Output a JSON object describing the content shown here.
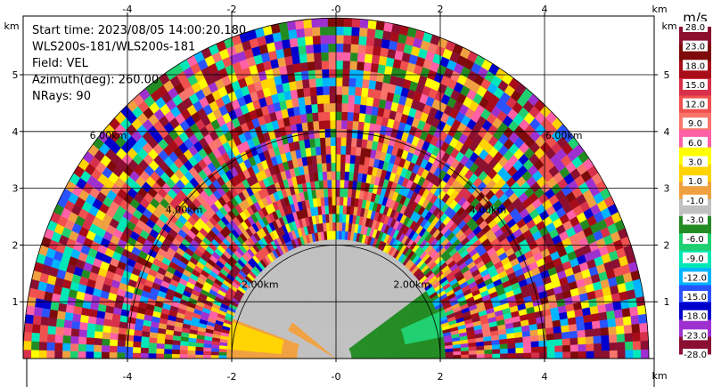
{
  "chart_data": {
    "type": "heatmap",
    "subtype": "radar-ppi-sector",
    "info_lines": [
      "Start time: 2023/08/05 14:00:20.180",
      "WLS200s-181/WLS200s-181",
      "Field: VEL",
      "Azimuth(deg): 260.00",
      "NRays: 90"
    ],
    "x_unit": "km",
    "y_unit": "km",
    "x_ticks": [
      "-4",
      "-2",
      "-0",
      "2",
      "4"
    ],
    "x_tick_values": [
      -4,
      -2,
      0,
      2,
      4
    ],
    "y_ticks": [
      "1",
      "2",
      "3",
      "4",
      "5"
    ],
    "y_tick_values": [
      1,
      2,
      3,
      4,
      5
    ],
    "xlim": [
      -6.0,
      6.0
    ],
    "ylim": [
      0,
      5.75
    ],
    "max_range_km": 6.0,
    "range_rings": [
      {
        "radius_km": 2.0,
        "label": "2.00km"
      },
      {
        "radius_km": 4.0,
        "label": "4.00km"
      },
      {
        "radius_km": 6.0,
        "label": "6.00km"
      }
    ],
    "grid": true,
    "colorbar": {
      "unit": "m/s",
      "ticks": [
        "28.0",
        "23.0",
        "18.0",
        "15.0",
        "12.0",
        "9.0",
        "6.0",
        "3.0",
        "1.0",
        "-1.0",
        "-3.0",
        "-6.0",
        "-9.0",
        "-12.0",
        "-15.0",
        "-18.0",
        "-23.0",
        "-28.0"
      ],
      "colors": [
        "#8c0f2e",
        "#7e0a0a",
        "#a80c18",
        "#d8304a",
        "#f0504e",
        "#f9756c",
        "#ff60a6",
        "#ffff00",
        "#ffd400",
        "#f0a040",
        "#c0c0c0",
        "#228b22",
        "#1fd070",
        "#00e8b8",
        "#00b4ff",
        "#2a52ff",
        "#0000cc",
        "#9f30d0",
        "#8a0f32"
      ]
    },
    "regions": [
      {
        "name": "near-range-zero-velocity",
        "value_ms": 0,
        "max_range_km": 2.05
      },
      {
        "name": "approaching-west",
        "value_ms": 2,
        "azimuth_from_deg": 240,
        "azimuth_to_deg": 290
      },
      {
        "name": "receding-east",
        "value_ms": -2,
        "azimuth_from_deg": 55,
        "azimuth_to_deg": 110
      },
      {
        "name": "noise-beyond",
        "value_ms": "random",
        "min_range_km": 2.05
      }
    ]
  }
}
